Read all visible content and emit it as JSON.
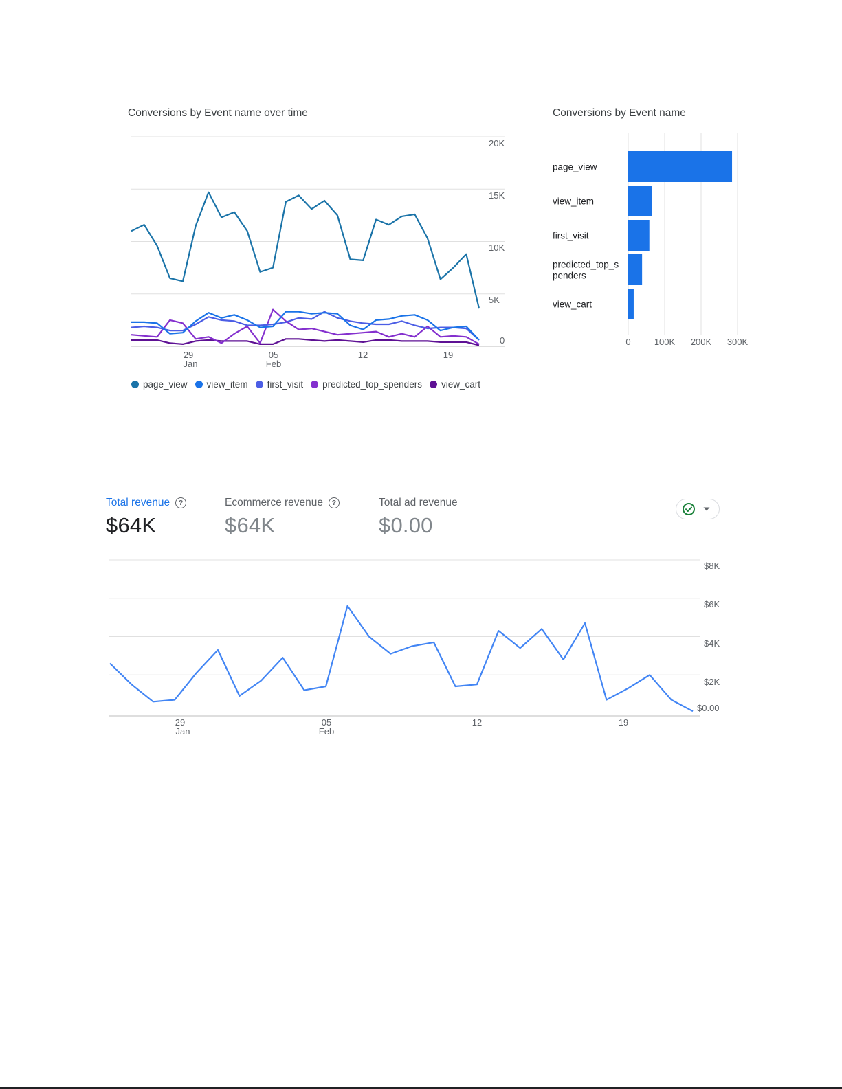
{
  "line_card": {
    "title": "Conversions by Event name over time",
    "y_ticks": [
      "20K",
      "15K",
      "10K",
      "5K",
      "0"
    ],
    "x_ticks": [
      {
        "day": "29",
        "month": "Jan"
      },
      {
        "day": "05",
        "month": "Feb"
      },
      {
        "day": "12",
        "month": ""
      },
      {
        "day": "19",
        "month": ""
      }
    ]
  },
  "bar_card": {
    "title": "Conversions by Event name",
    "x_ticks": [
      "0",
      "100K",
      "200K",
      "300K"
    ]
  },
  "metrics": {
    "total_revenue": {
      "label": "Total revenue",
      "value": "$64K"
    },
    "ecommerce_revenue": {
      "label": "Ecommerce revenue",
      "value": "$64K"
    },
    "total_ad_revenue": {
      "label": "Total ad revenue",
      "value": "$0.00"
    }
  },
  "revenue_chart": {
    "y_ticks": [
      "$8K",
      "$6K",
      "$4K",
      "$2K",
      "$0.00"
    ],
    "x_ticks": [
      {
        "day": "29",
        "month": "Jan"
      },
      {
        "day": "05",
        "month": "Feb"
      },
      {
        "day": "12",
        "month": ""
      },
      {
        "day": "19",
        "month": ""
      }
    ]
  },
  "icons": {
    "help": "help-circle-icon",
    "status": "check-circle-icon",
    "dropdown": "caret-down-icon"
  },
  "colors": {
    "page_view": "#1a73a8",
    "view_item": "#1a73e8",
    "first_visit": "#4c5ee5",
    "predicted_top_spenders": "#8430ce",
    "view_cart": "#5e1194",
    "revenue_line": "#4285f4",
    "active_metric": "#1a73e8",
    "check": "#188038"
  },
  "chart_data": [
    {
      "type": "line",
      "title": "Conversions by Event name over time",
      "x": [
        "Jan 25",
        "Jan 26",
        "Jan 27",
        "Jan 28",
        "Jan 29",
        "Jan 30",
        "Jan 31",
        "Feb 01",
        "Feb 02",
        "Feb 03",
        "Feb 04",
        "Feb 05",
        "Feb 06",
        "Feb 07",
        "Feb 08",
        "Feb 09",
        "Feb 10",
        "Feb 11",
        "Feb 12",
        "Feb 13",
        "Feb 14",
        "Feb 15",
        "Feb 16",
        "Feb 17",
        "Feb 18",
        "Feb 19",
        "Feb 20",
        "Feb 21"
      ],
      "ylim": [
        0,
        20000
      ],
      "grid": true,
      "legend": "bottom",
      "series": [
        {
          "name": "page_view",
          "values": [
            11000,
            11600,
            9600,
            6500,
            6200,
            11500,
            14700,
            12300,
            12800,
            11000,
            7100,
            7500,
            13800,
            14400,
            13100,
            13900,
            12500,
            8300,
            8200,
            12100,
            11600,
            12400,
            12600,
            10300,
            6400,
            7500,
            8800,
            3600
          ]
        },
        {
          "name": "view_item",
          "values": [
            2300,
            2300,
            2200,
            1200,
            1300,
            2400,
            3200,
            2700,
            3000,
            2500,
            1800,
            1900,
            3300,
            3300,
            3100,
            3200,
            3100,
            2000,
            1600,
            2500,
            2600,
            2900,
            3000,
            2500,
            1500,
            1800,
            1900,
            600
          ]
        },
        {
          "name": "first_visit",
          "values": [
            1800,
            1900,
            1800,
            1500,
            1500,
            2100,
            2800,
            2500,
            2400,
            2000,
            2000,
            2100,
            2300,
            2700,
            2600,
            3300,
            2700,
            2400,
            2200,
            2100,
            2100,
            2400,
            2000,
            1700,
            1800,
            1800,
            1700,
            600
          ]
        },
        {
          "name": "predicted_top_spenders",
          "values": [
            1100,
            1000,
            900,
            2500,
            2200,
            700,
            900,
            300,
            1200,
            1900,
            300,
            3500,
            2400,
            1600,
            1700,
            1400,
            1100,
            1200,
            1300,
            1400,
            900,
            1200,
            900,
            1900,
            900,
            1000,
            900,
            200
          ]
        },
        {
          "name": "view_cart",
          "values": [
            600,
            600,
            600,
            300,
            200,
            500,
            600,
            500,
            500,
            500,
            200,
            200,
            700,
            700,
            600,
            500,
            600,
            500,
            400,
            600,
            600,
            500,
            500,
            500,
            400,
            400,
            400,
            100
          ]
        }
      ]
    },
    {
      "type": "bar",
      "title": "Conversions by Event name",
      "orientation": "horizontal",
      "categories": [
        "page_view",
        "view_item",
        "first_visit",
        "predicted_top_spenders",
        "view_cart"
      ],
      "category_labels": [
        "page_view",
        "view_item",
        "first_visit",
        "predicted_top_s penders",
        "view_cart"
      ],
      "values": [
        285000,
        65000,
        58000,
        38000,
        15000
      ],
      "xlim": [
        0,
        300000
      ],
      "grid": true
    },
    {
      "type": "line",
      "x": [
        "Jan 25",
        "Jan 26",
        "Jan 27",
        "Jan 28",
        "Jan 29",
        "Jan 30",
        "Jan 31",
        "Feb 01",
        "Feb 02",
        "Feb 03",
        "Feb 04",
        "Feb 05",
        "Feb 06",
        "Feb 07",
        "Feb 08",
        "Feb 09",
        "Feb 10",
        "Feb 11",
        "Feb 12",
        "Feb 13",
        "Feb 14",
        "Feb 15",
        "Feb 16",
        "Feb 17",
        "Feb 18",
        "Feb 19",
        "Feb 20",
        "Feb 21"
      ],
      "ylim": [
        0,
        8000
      ],
      "grid": true,
      "series": [
        {
          "name": "Total revenue",
          "values": [
            2600,
            1500,
            600,
            700,
            2100,
            3300,
            900,
            1700,
            2900,
            1200,
            1400,
            5600,
            4000,
            3100,
            3500,
            3700,
            1400,
            1500,
            4300,
            3400,
            4400,
            2800,
            4700,
            700,
            1300,
            2000,
            700,
            100
          ]
        }
      ]
    }
  ]
}
